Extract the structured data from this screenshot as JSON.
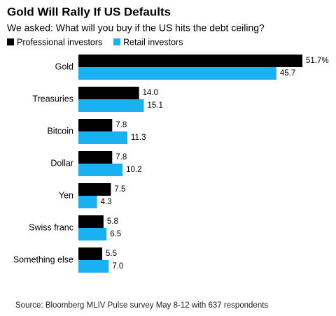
{
  "chart_data": {
    "type": "bar",
    "orientation": "horizontal",
    "title": "Gold Will Rally If US Defaults",
    "subtitle": "We asked: What will you buy if the US hits the debt ceiling?",
    "source": "Source: Bloomberg MLIV Pulse survey May 8-12 with 637 respondents",
    "categories": [
      "Gold",
      "Treasuries",
      "Bitcoin",
      "Dollar",
      "Yen",
      "Swiss franc",
      "Something else"
    ],
    "series": [
      {
        "name": "Professional investors",
        "color": "#000000",
        "values": [
          51.7,
          14.0,
          7.8,
          7.8,
          7.5,
          5.8,
          5.5
        ],
        "value_labels": [
          "51.7%",
          "14.0",
          "7.8",
          "7.8",
          "7.5",
          "5.8",
          "5.5"
        ]
      },
      {
        "name": "Retail investors",
        "color": "#1ab1f2",
        "values": [
          45.7,
          15.1,
          11.3,
          10.2,
          4.3,
          6.5,
          7.0
        ],
        "value_labels": [
          "45.7",
          "15.1",
          "11.3",
          "10.2",
          "4.3",
          "6.5",
          "7.0"
        ]
      }
    ]
  }
}
